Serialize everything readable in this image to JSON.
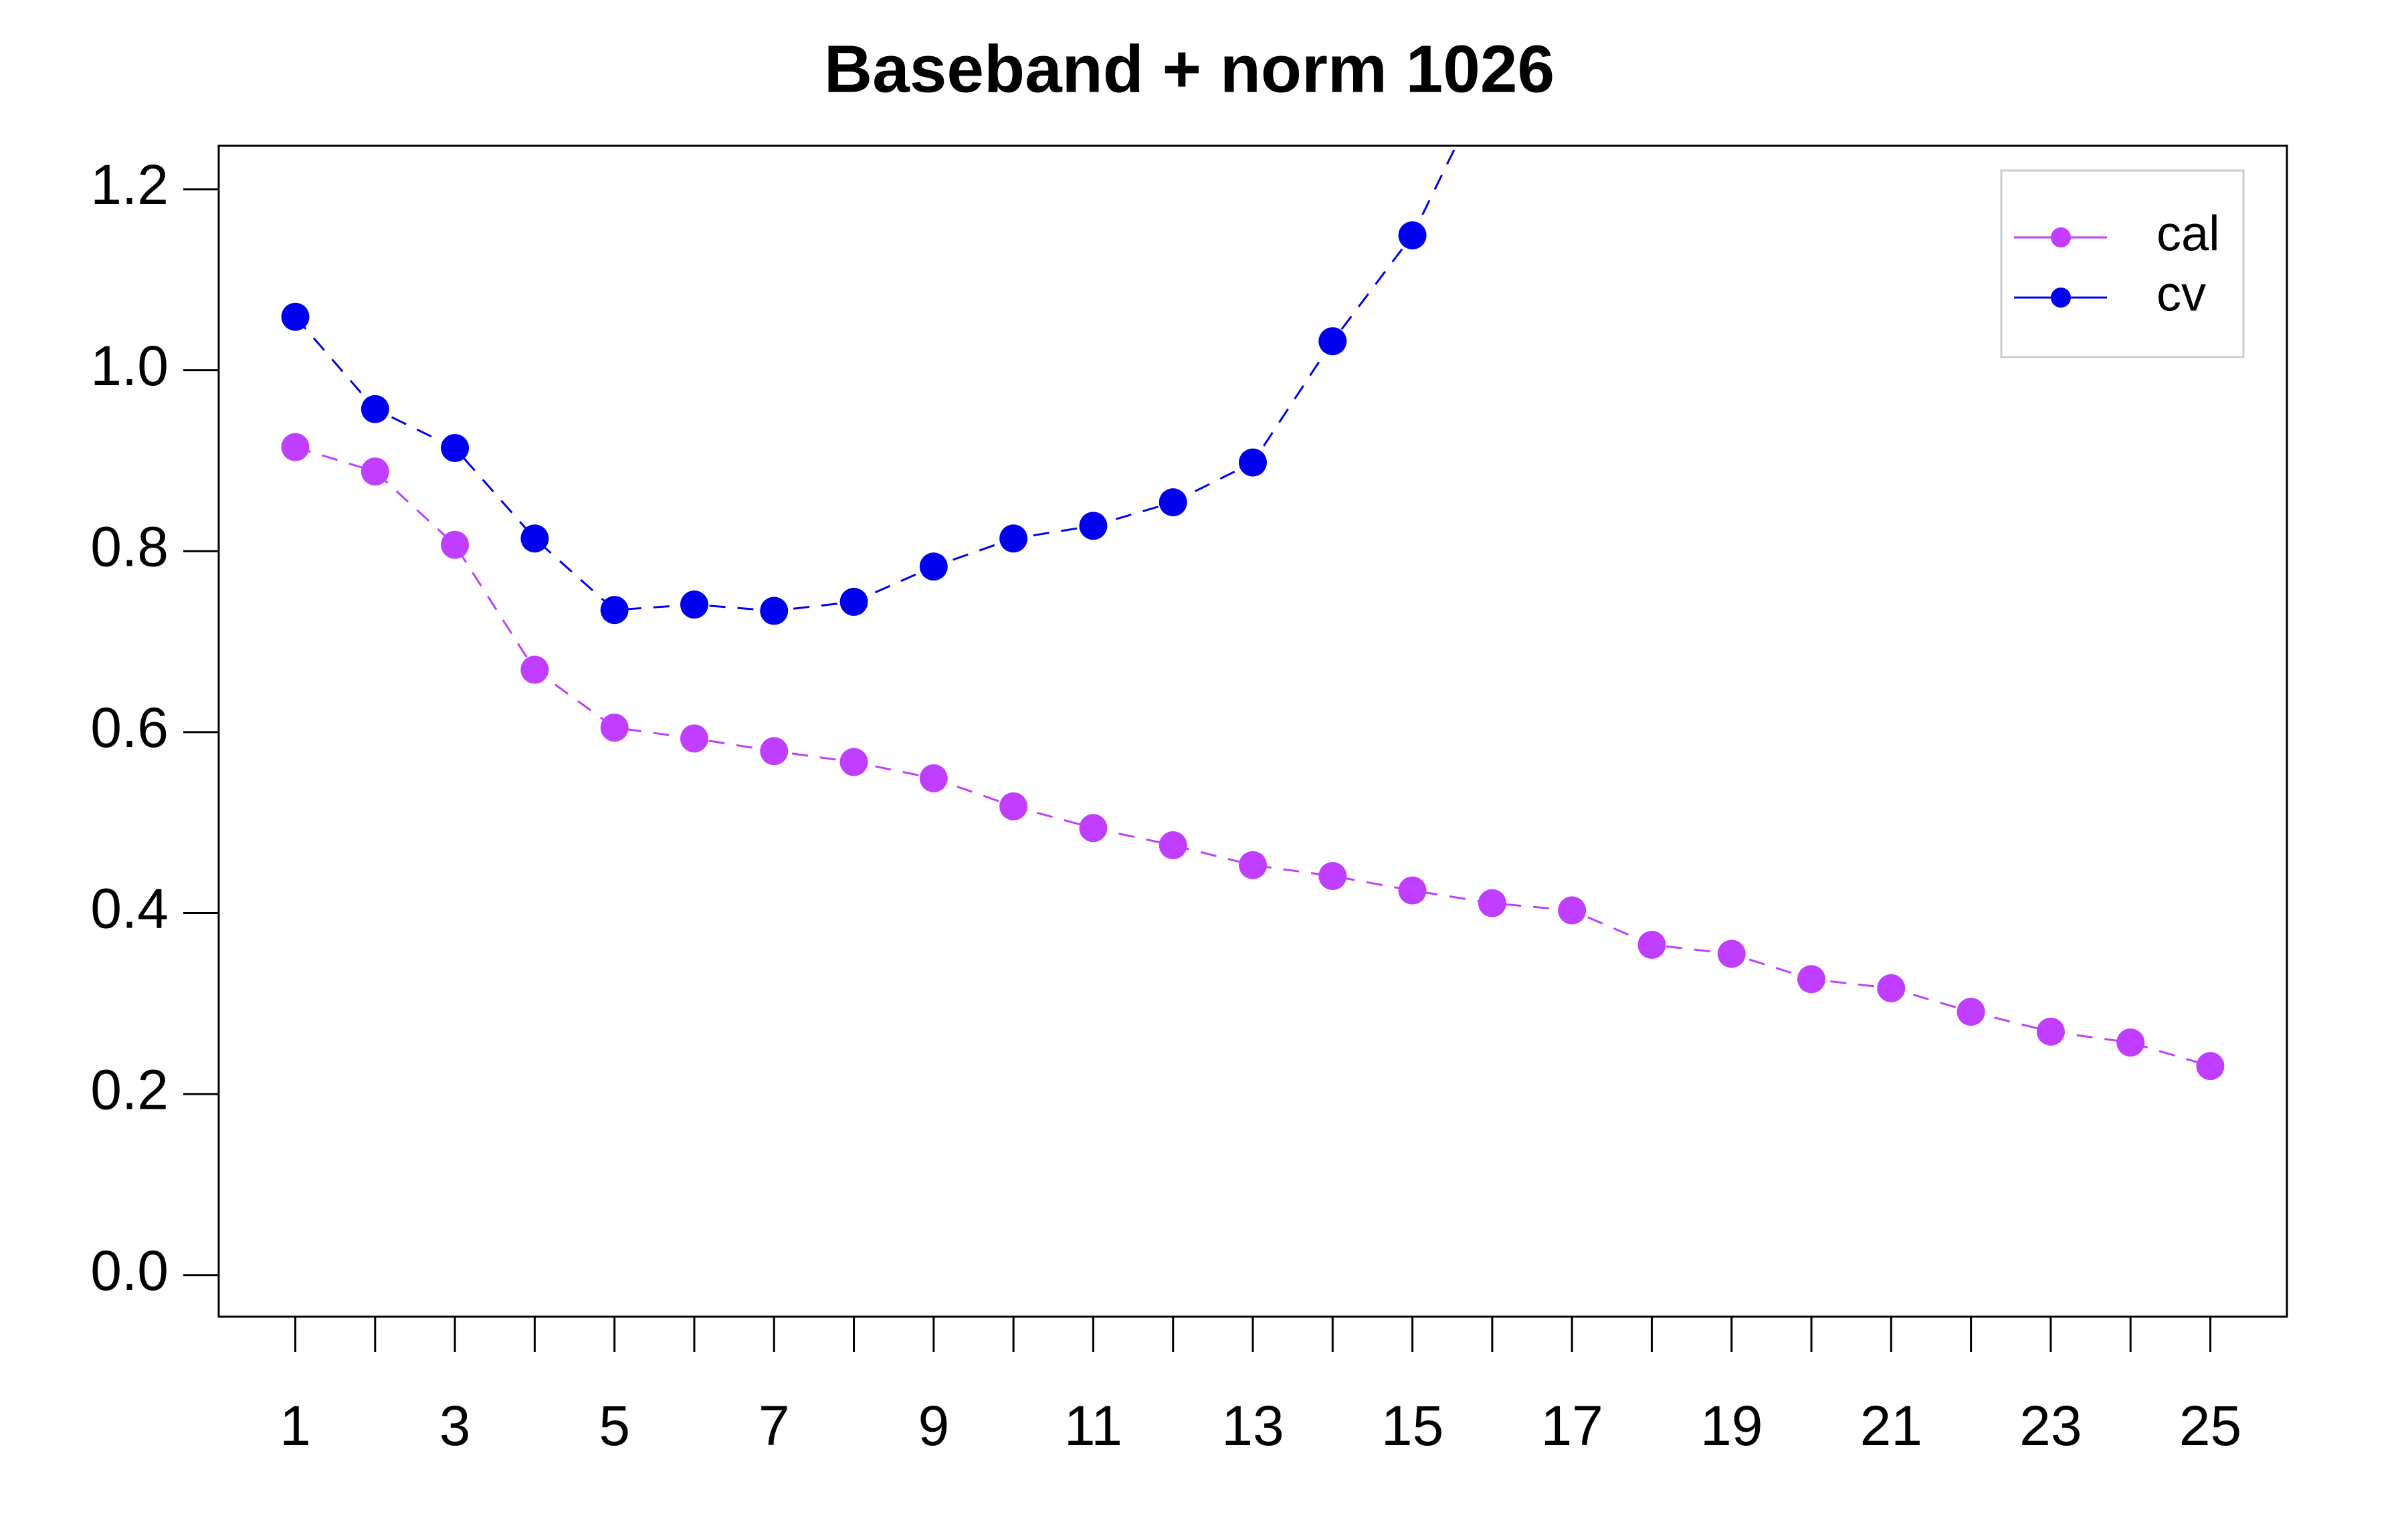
{
  "chart_data": {
    "type": "line",
    "title": "Baseband + norm 1026",
    "x": [
      1,
      2,
      3,
      4,
      5,
      6,
      7,
      8,
      9,
      10,
      11,
      12,
      13,
      14,
      15,
      16,
      17,
      18,
      19,
      20,
      21,
      22,
      23,
      24,
      25
    ],
    "series": [
      {
        "name": "cal",
        "color": "#bf3eff",
        "values": [
          0.915,
          0.888,
          0.807,
          0.669,
          0.605,
          0.593,
          0.579,
          0.567,
          0.549,
          0.518,
          0.494,
          0.475,
          0.453,
          0.441,
          0.425,
          0.411,
          0.403,
          0.365,
          0.355,
          0.327,
          0.317,
          0.291,
          0.269,
          0.257,
          0.231
        ]
      },
      {
        "name": "cv",
        "color": "#0000ee",
        "values": [
          1.059,
          0.957,
          0.914,
          0.814,
          0.735,
          0.741,
          0.734,
          0.744,
          0.783,
          0.814,
          0.828,
          0.854,
          0.898,
          1.032,
          1.149,
          1.33,
          null,
          null,
          null,
          null,
          null,
          null,
          null,
          null,
          null
        ]
      }
    ],
    "xlim": [
      0.04,
      25.96
    ],
    "ylim": [
      -0.046,
      1.248
    ],
    "xticks": [
      1,
      {
        "value": 2,
        "label": null
      },
      3,
      {
        "value": 4,
        "label": null
      },
      5,
      {
        "value": 6,
        "label": null
      },
      7,
      {
        "value": 8,
        "label": null
      },
      9,
      {
        "value": 10,
        "label": null
      },
      11,
      {
        "value": 12,
        "label": null
      },
      13,
      {
        "value": 14,
        "label": null
      },
      15,
      {
        "value": 16,
        "label": null
      },
      17,
      {
        "value": 18,
        "label": null
      },
      19,
      {
        "value": 20,
        "label": null
      },
      21,
      {
        "value": 22,
        "label": null
      },
      23,
      {
        "value": 24,
        "label": null
      },
      25
    ],
    "yticks": [
      {
        "value": 0,
        "label": "0.0"
      },
      0.2,
      0.4,
      0.6,
      0.8,
      {
        "value": 1,
        "label": "1.0"
      },
      1.2
    ],
    "legend": "top-right",
    "grid": false
  }
}
